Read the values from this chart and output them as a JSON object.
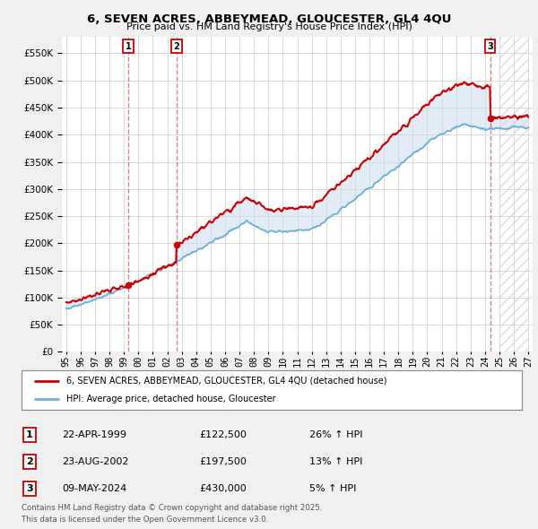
{
  "title": "6, SEVEN ACRES, ABBEYMEAD, GLOUCESTER, GL4 4QU",
  "subtitle": "Price paid vs. HM Land Registry's House Price Index (HPI)",
  "legend_line1": "6, SEVEN ACRES, ABBEYMEAD, GLOUCESTER, GL4 4QU (detached house)",
  "legend_line2": "HPI: Average price, detached house, Gloucester",
  "transactions": [
    {
      "label": "1",
      "date": "22-APR-1999",
      "price": 122500,
      "pct": "26%",
      "dir": "↑",
      "year_x": 1999.31
    },
    {
      "label": "2",
      "date": "23-AUG-2002",
      "price": 197500,
      "pct": "13%",
      "dir": "↑",
      "year_x": 2002.64
    },
    {
      "label": "3",
      "date": "09-MAY-2024",
      "price": 430000,
      "pct": "5%",
      "dir": "↑",
      "year_x": 2024.36
    }
  ],
  "footer_line1": "Contains HM Land Registry data © Crown copyright and database right 2025.",
  "footer_line2": "This data is licensed under the Open Government Licence v3.0.",
  "hpi_color": "#6baed6",
  "price_color": "#cc0000",
  "vline_color": "#cc0000",
  "vline_alpha": 0.5,
  "shade_color": "#c6dbef",
  "shade_alpha": 0.5,
  "ylim": [
    0,
    580000
  ],
  "xlim_start": 1994.7,
  "xlim_end": 2027.3,
  "yticks": [
    0,
    50000,
    100000,
    150000,
    200000,
    250000,
    300000,
    350000,
    400000,
    450000,
    500000,
    550000
  ],
  "xticks": [
    1995,
    1996,
    1997,
    1998,
    1999,
    2000,
    2001,
    2002,
    2003,
    2004,
    2005,
    2006,
    2007,
    2008,
    2009,
    2010,
    2011,
    2012,
    2013,
    2014,
    2015,
    2016,
    2017,
    2018,
    2019,
    2020,
    2021,
    2022,
    2023,
    2024,
    2025,
    2026,
    2027
  ],
  "bg_color": "#f0f0f0",
  "plot_bg": "#ffffff",
  "hatch_start": 2025.0,
  "table_rows": [
    {
      "label": "1",
      "date": "22-APR-1999",
      "price": "£122,500",
      "pct": "26% ↑ HPI"
    },
    {
      "label": "2",
      "date": "23-AUG-2002",
      "price": "£197,500",
      "pct": "13% ↑ HPI"
    },
    {
      "label": "3",
      "date": "09-MAY-2024",
      "price": "£430,000",
      "pct": "5% ↑ HPI"
    }
  ]
}
